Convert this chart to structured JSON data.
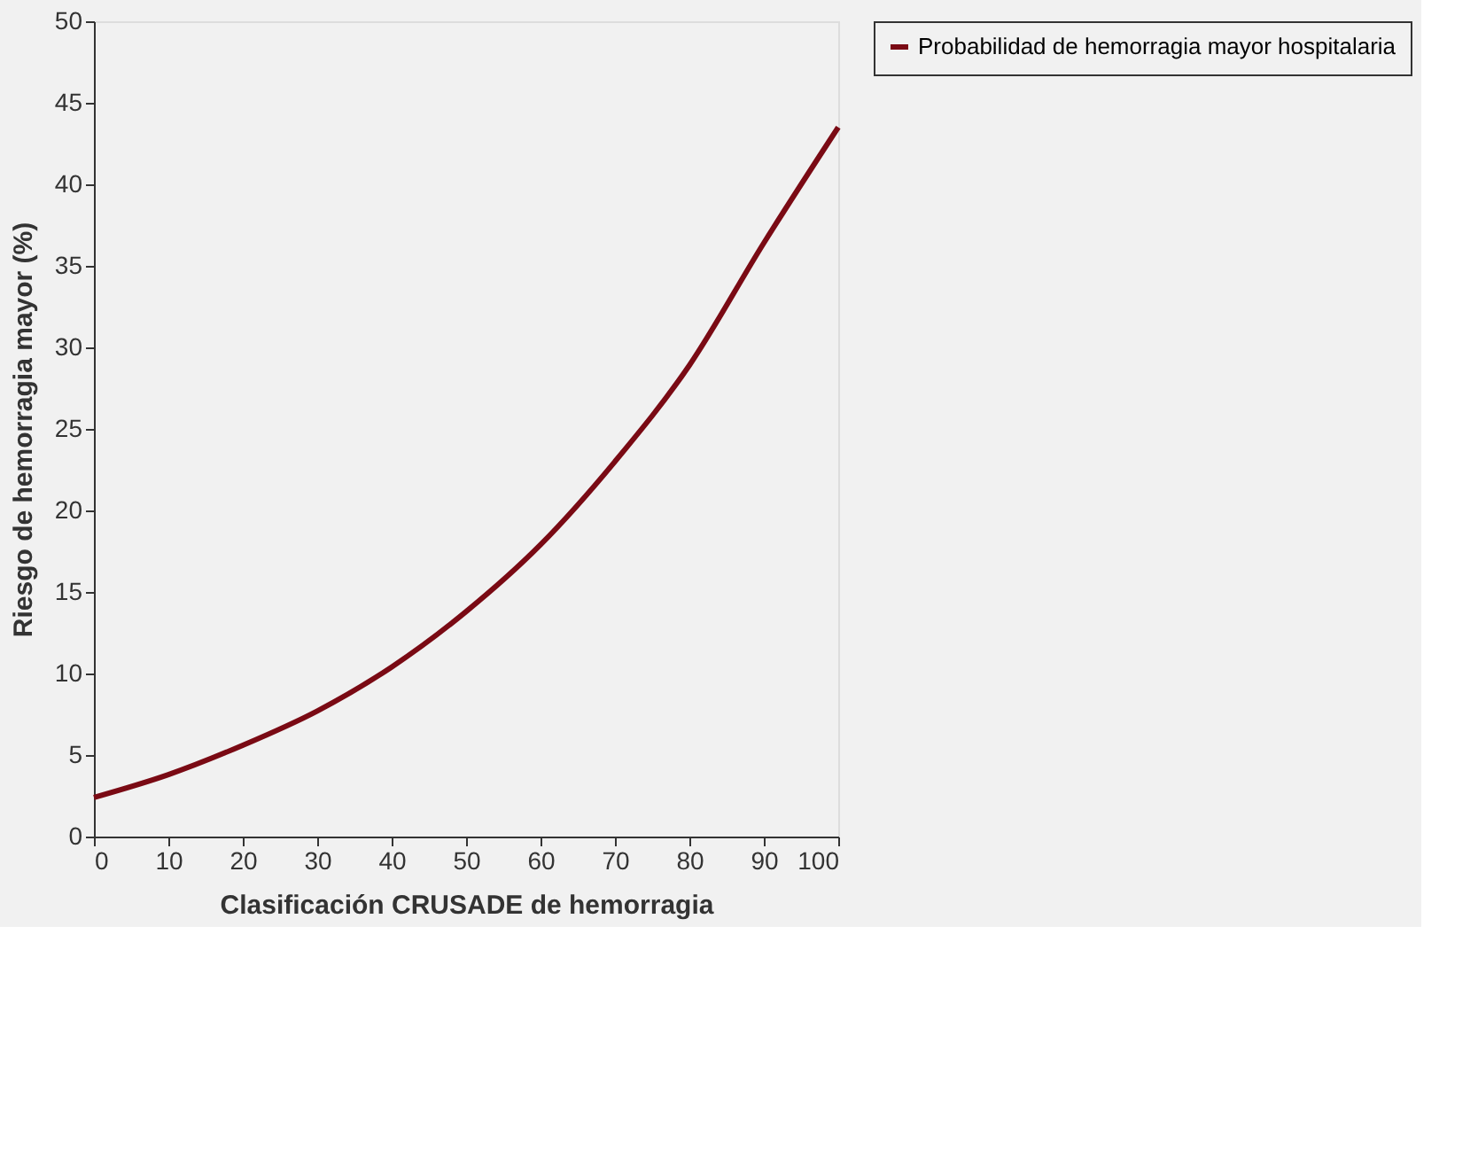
{
  "chart_data": {
    "type": "line",
    "xlabel": "Clasificación CRUSADE de hemorragia",
    "ylabel": "Riesgo de hemorragia mayor (%)",
    "x": [
      0,
      10,
      20,
      30,
      40,
      50,
      60,
      70,
      80,
      90,
      100
    ],
    "series": [
      {
        "name": "Probabilidad de hemorragia mayor hospitalaria",
        "color": "#7a0a14",
        "values": [
          2.4,
          3.8,
          5.6,
          7.7,
          10.4,
          13.8,
          17.9,
          23.0,
          28.9,
          36.4,
          43.5
        ]
      }
    ],
    "xlim": [
      0,
      100
    ],
    "xticks": [
      0,
      10,
      20,
      30,
      40,
      50,
      60,
      70,
      80,
      90,
      100
    ],
    "ylim": [
      0,
      50
    ],
    "yticks": [
      0,
      5,
      10,
      15,
      20,
      25,
      30,
      35,
      40,
      45,
      50
    ],
    "grid": false,
    "legend": "right",
    "marker": "none",
    "line_style": "solid"
  }
}
